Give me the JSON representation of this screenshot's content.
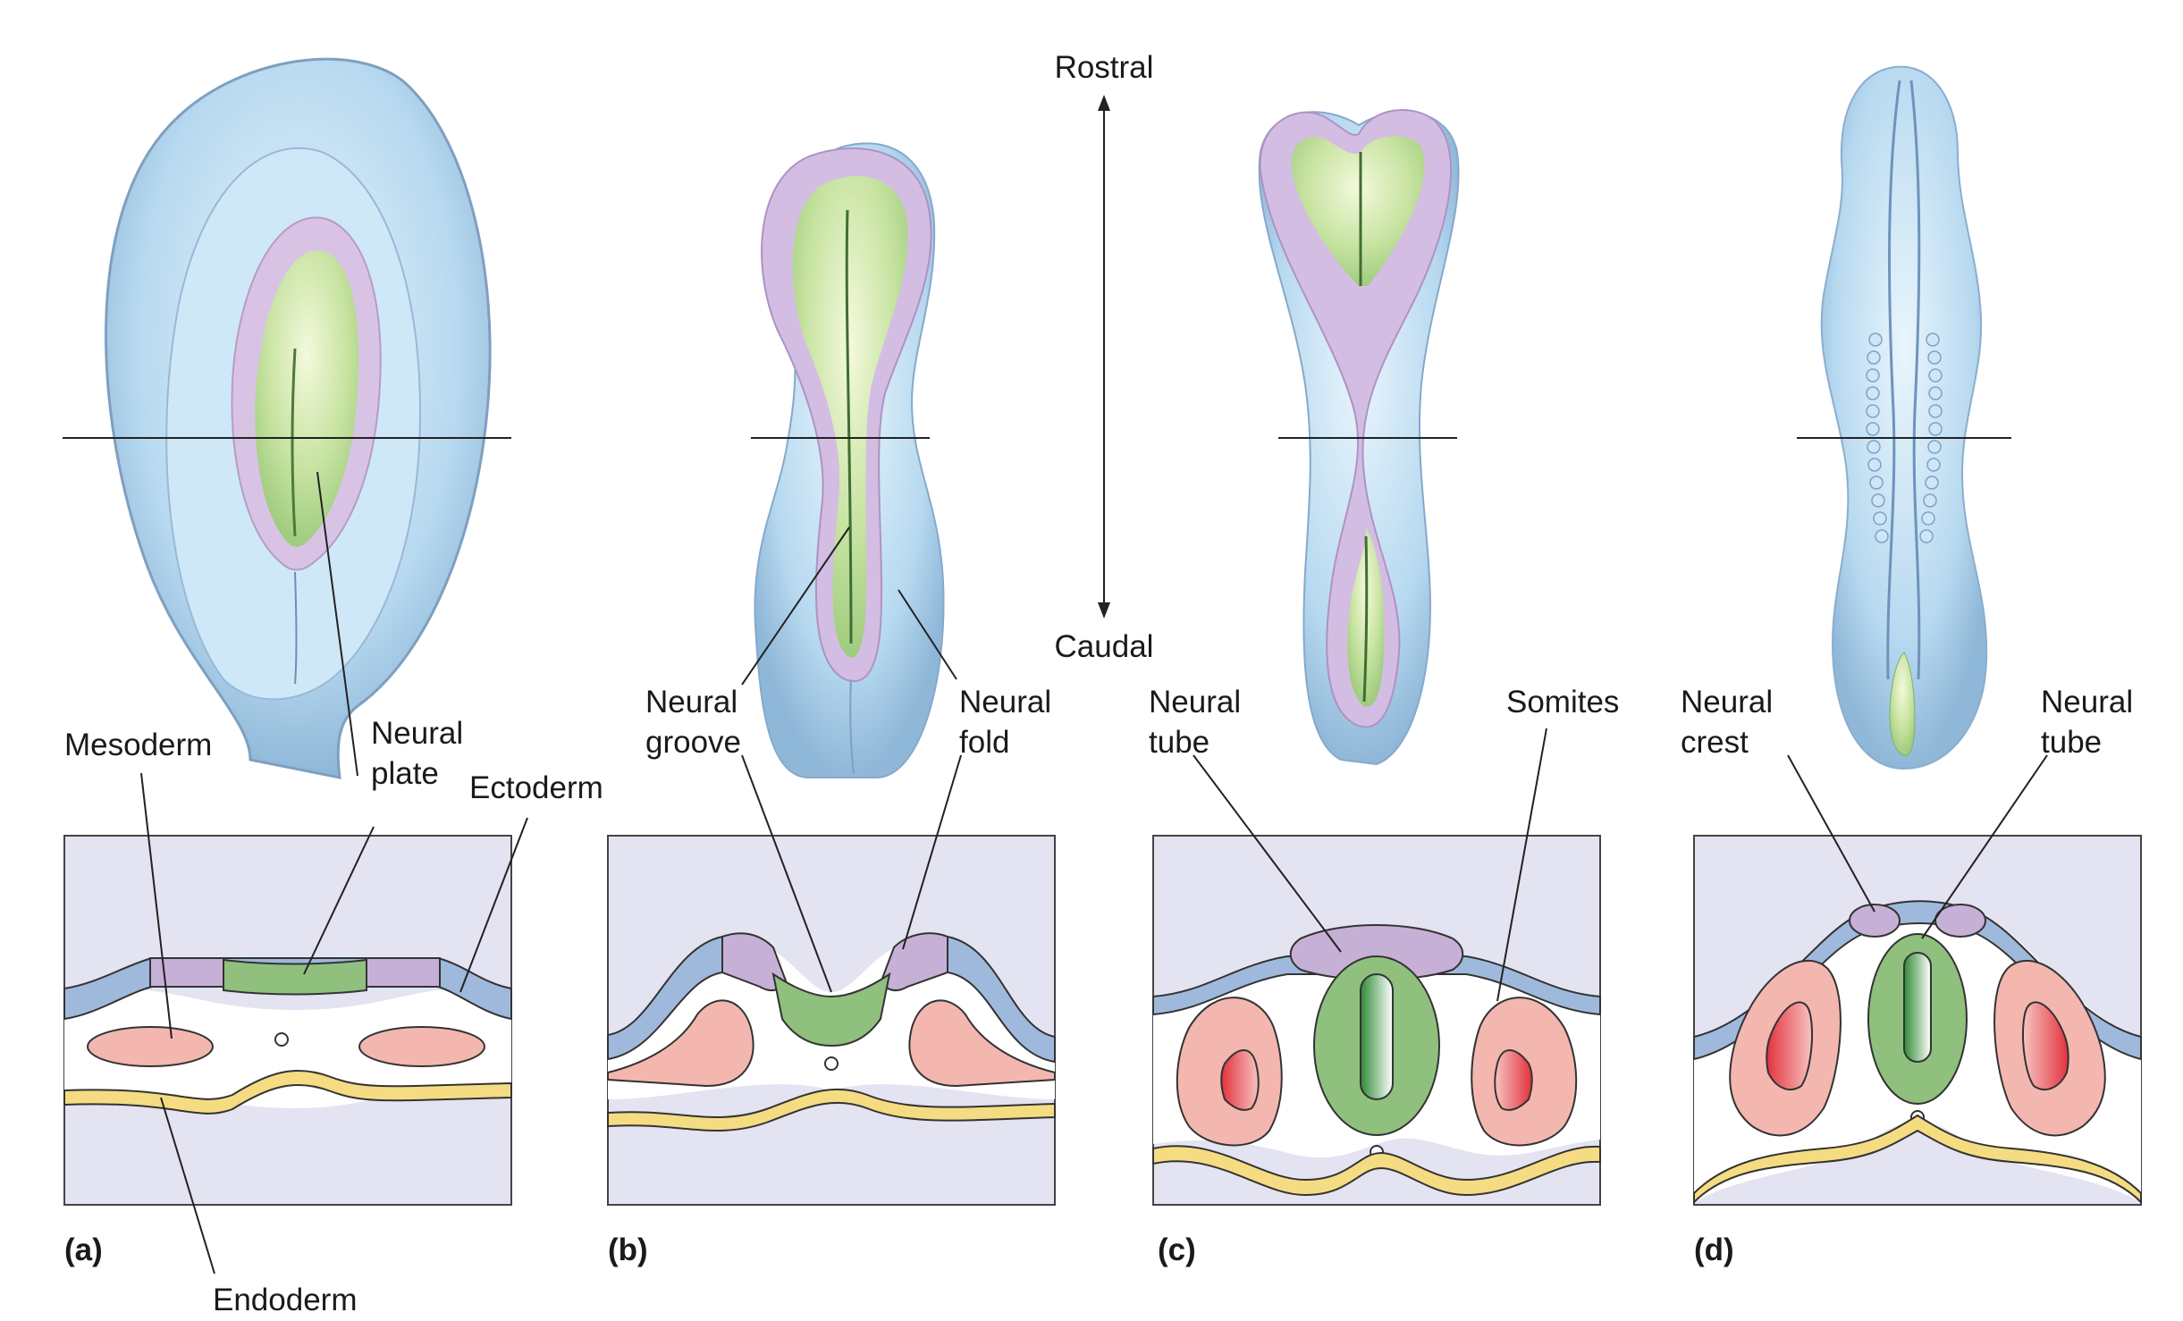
{
  "axis": {
    "top_label": "Rostral",
    "bottom_label": "Caudal"
  },
  "panels": [
    {
      "id": "a",
      "panel_label": "(a)",
      "labels": [
        "Mesoderm",
        "Neural",
        "plate",
        "Ectoderm",
        "Endoderm"
      ]
    },
    {
      "id": "b",
      "panel_label": "(b)",
      "labels": [
        "Neural",
        "groove",
        "Neural",
        "fold"
      ]
    },
    {
      "id": "c",
      "panel_label": "(c)",
      "labels": [
        "Neural",
        "tube",
        "Somites"
      ]
    },
    {
      "id": "d",
      "panel_label": "(d)",
      "labels": [
        "Neural",
        "crest",
        "Neural",
        "tube"
      ]
    }
  ],
  "colors": {
    "ectoderm": "#9fb9dc",
    "neural_plate": "#8fc07e",
    "neural_fold": "#c7b0d6",
    "mesoderm": "#f3b7b0",
    "endoderm": "#f5dc82",
    "background_box": "#e3e3f1",
    "embryo_blue": "#bcdcf2",
    "embryo_green": "#c5e3a2",
    "embryo_purple": "#cdb4dc"
  }
}
